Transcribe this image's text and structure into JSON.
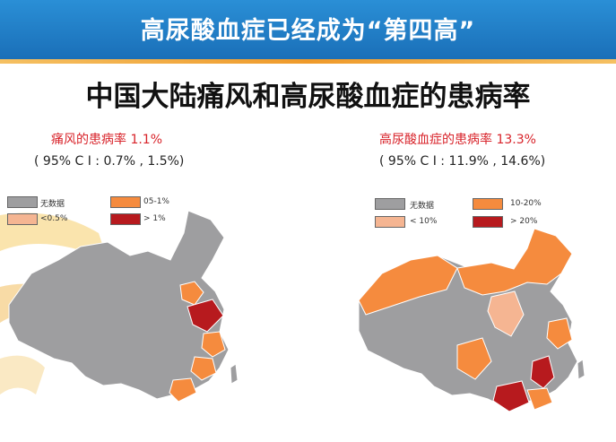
{
  "header": {
    "title": "高尿酸血症已经成为“第四高”"
  },
  "main_title": "中国大陆痛风和高尿酸血症的患病率",
  "left": {
    "stat": "痛风的患病率 1.1%",
    "ci": "( 95% C I : 0.7% , 1.5%)",
    "legend": [
      {
        "label": "无数据",
        "color": "#9e9ea0"
      },
      {
        "label": "05-1%",
        "color": "#f58b3e"
      },
      {
        "label": "<0.5%",
        "color": "#f5b592"
      },
      {
        "label": "> 1%",
        "color": "#b71a1e"
      }
    ]
  },
  "right": {
    "stat": "高尿酸血症的患病率 13.3%",
    "ci": "( 95% C I : 11.9% , 14.6%)",
    "legend": [
      {
        "label": "无数据",
        "color": "#9e9ea0"
      },
      {
        "label": "10-20%",
        "color": "#f58b3e"
      },
      {
        "label": "< 10%",
        "color": "#f5b592"
      },
      {
        "label": "> 20%",
        "color": "#b71a1e"
      }
    ]
  }
}
